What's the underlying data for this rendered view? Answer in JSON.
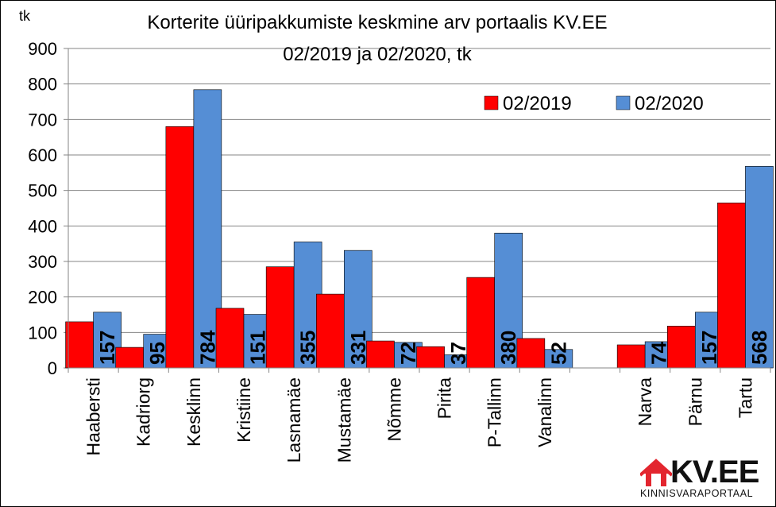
{
  "chart_data": {
    "type": "bar",
    "title_line1": "Korterite üüripakkumiste keskmine arv portaalis KV.EE",
    "title_line2": "02/2019 ja 02/2020, tk",
    "ylabel": "tk",
    "ylim": [
      0,
      900
    ],
    "yticks": [
      "0",
      "100",
      "200",
      "300",
      "400",
      "500",
      "600",
      "700",
      "800",
      "900"
    ],
    "grid": true,
    "legend_position": "top-right",
    "categories": [
      "Haabersti",
      "Kadriorg",
      "Kesklinn",
      "Kristiine",
      "Lasnamäe",
      "Mustamäe",
      "Nõmme",
      "Pirita",
      "P-Tallinn",
      "Vanalinn",
      "",
      "Narva",
      "Pärnu",
      "Tartu"
    ],
    "series": [
      {
        "name": "02/2019",
        "color": "#ff0000",
        "values": [
          130,
          58,
          680,
          168,
          285,
          208,
          76,
          60,
          255,
          83,
          null,
          65,
          118,
          465
        ]
      },
      {
        "name": "02/2020",
        "color": "#558ed5",
        "values": [
          157,
          95,
          784,
          151,
          355,
          331,
          72,
          37,
          380,
          52,
          null,
          74,
          157,
          568
        ]
      }
    ],
    "data_labels": [
      "157",
      "95",
      "784",
      "151",
      "355",
      "331",
      "72",
      "37",
      "380",
      "52",
      "",
      "74",
      "157",
      "568"
    ]
  },
  "logo": {
    "name": "KV.EE",
    "tagline": "KINNISVARAPORTAAL",
    "color": "#e3262f"
  }
}
